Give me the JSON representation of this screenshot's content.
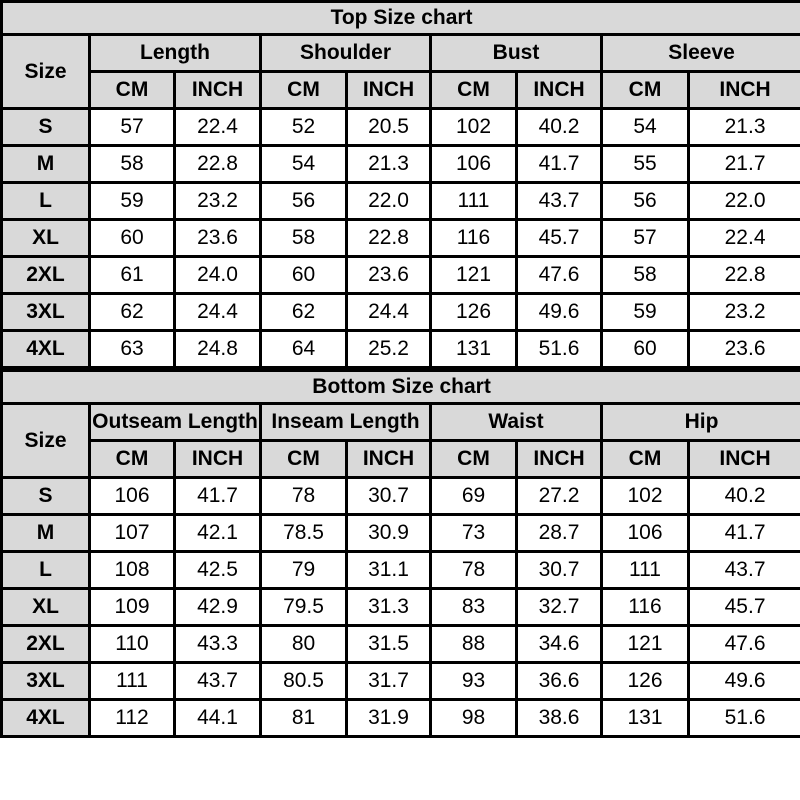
{
  "style": {
    "header_background": "#d9d9d9",
    "cell_background": "#ffffff",
    "border_color": "#000000",
    "text_color": "#000000"
  },
  "chart_data": [
    {
      "type": "table",
      "title": "Top Size chart",
      "size_label": "Size",
      "groups": [
        "Length",
        "Shoulder",
        "Bust",
        "Sleeve"
      ],
      "units": [
        "CM",
        "INCH"
      ],
      "rows": [
        {
          "size": "S",
          "values": [
            "57",
            "22.4",
            "52",
            "20.5",
            "102",
            "40.2",
            "54",
            "21.3"
          ]
        },
        {
          "size": "M",
          "values": [
            "58",
            "22.8",
            "54",
            "21.3",
            "106",
            "41.7",
            "55",
            "21.7"
          ]
        },
        {
          "size": "L",
          "values": [
            "59",
            "23.2",
            "56",
            "22.0",
            "111",
            "43.7",
            "56",
            "22.0"
          ]
        },
        {
          "size": "XL",
          "values": [
            "60",
            "23.6",
            "58",
            "22.8",
            "116",
            "45.7",
            "57",
            "22.4"
          ]
        },
        {
          "size": "2XL",
          "values": [
            "61",
            "24.0",
            "60",
            "23.6",
            "121",
            "47.6",
            "58",
            "22.8"
          ]
        },
        {
          "size": "3XL",
          "values": [
            "62",
            "24.4",
            "62",
            "24.4",
            "126",
            "49.6",
            "59",
            "23.2"
          ]
        },
        {
          "size": "4XL",
          "values": [
            "63",
            "24.8",
            "64",
            "25.2",
            "131",
            "51.6",
            "60",
            "23.6"
          ]
        }
      ]
    },
    {
      "type": "table",
      "title": "Bottom Size chart",
      "size_label": "Size",
      "groups": [
        "Outseam Length",
        "Inseam Length",
        "Waist",
        "Hip"
      ],
      "units": [
        "CM",
        "INCH"
      ],
      "rows": [
        {
          "size": "S",
          "values": [
            "106",
            "41.7",
            "78",
            "30.7",
            "69",
            "27.2",
            "102",
            "40.2"
          ]
        },
        {
          "size": "M",
          "values": [
            "107",
            "42.1",
            "78.5",
            "30.9",
            "73",
            "28.7",
            "106",
            "41.7"
          ]
        },
        {
          "size": "L",
          "values": [
            "108",
            "42.5",
            "79",
            "31.1",
            "78",
            "30.7",
            "111",
            "43.7"
          ]
        },
        {
          "size": "XL",
          "values": [
            "109",
            "42.9",
            "79.5",
            "31.3",
            "83",
            "32.7",
            "116",
            "45.7"
          ]
        },
        {
          "size": "2XL",
          "values": [
            "110",
            "43.3",
            "80",
            "31.5",
            "88",
            "34.6",
            "121",
            "47.6"
          ]
        },
        {
          "size": "3XL",
          "values": [
            "111",
            "43.7",
            "80.5",
            "31.7",
            "93",
            "36.6",
            "126",
            "49.6"
          ]
        },
        {
          "size": "4XL",
          "values": [
            "112",
            "44.1",
            "81",
            "31.9",
            "98",
            "38.6",
            "131",
            "51.6"
          ]
        }
      ]
    }
  ]
}
